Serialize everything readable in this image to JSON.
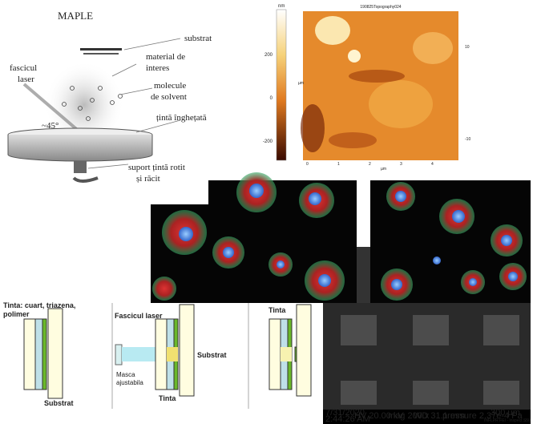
{
  "maple": {
    "title": "MAPLE",
    "substrat": "substrat",
    "material": [
      "material de",
      "interes"
    ],
    "laser": [
      "fascicul",
      "laser"
    ],
    "solvent": [
      "molecule",
      "de solvent"
    ],
    "angle": "~45°",
    "target": "țintă înghețată",
    "support": [
      "suport țintă rotit",
      "și răcit"
    ]
  },
  "afm": {
    "unit_z": "nm",
    "title": "190825Topography024",
    "colorbar_ticks": [
      "200",
      "0",
      "-200"
    ],
    "x_ticks": [
      "0",
      "1",
      "2",
      "3",
      "4"
    ],
    "x_unit": "µm",
    "y_unit": "µm",
    "right_ticks": [
      "10",
      "-10"
    ]
  },
  "schemes": {
    "target_label": [
      "Tinta: cuart, triazena,",
      "polimer"
    ],
    "substrate_1": "Substrat",
    "laser": "Fascicul laser",
    "substrate_2": "Substrat",
    "mask": [
      "Masca",
      "ajustabila"
    ],
    "target_2": "Tinta",
    "target_3": "Tinta"
  },
  "sem": {
    "date": "7/31/2020",
    "time": "2:44:26 AM",
    "hv": "HV 20.00 kV",
    "mag": "mag 200 x",
    "wd": "WD 31.1 mm",
    "pressure": "pressure 2.37e-4 Pa",
    "scale": "300 µm",
    "inst": "INFLPR FEI - Inspect S50"
  }
}
